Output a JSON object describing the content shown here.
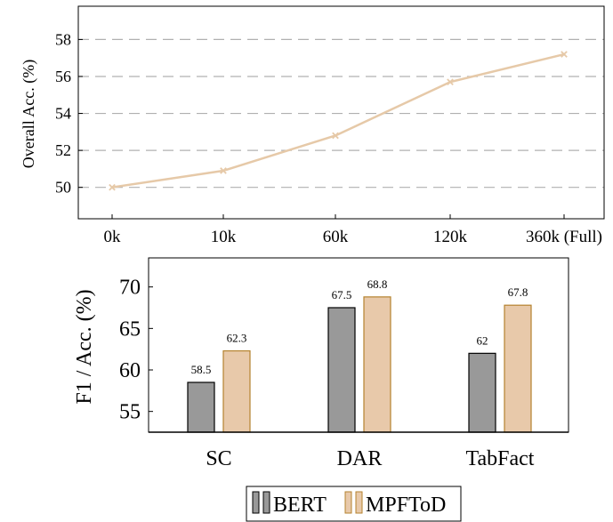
{
  "chart_data": [
    {
      "type": "line",
      "title": "",
      "xlabel": "",
      "ylabel": "Overall Acc. (%)",
      "categories": [
        "0k",
        "10k",
        "60k",
        "120k",
        "360k (Full)"
      ],
      "series": [
        {
          "values": [
            50.0,
            50.9,
            52.8,
            55.7,
            57.2
          ]
        }
      ],
      "yticks": [
        50,
        52,
        54,
        56,
        58
      ],
      "ylim": [
        48.3,
        59.8
      ],
      "grid": "horizontal dashed",
      "line_color": "#e6c9a8",
      "marker": "x"
    },
    {
      "type": "bar",
      "title": "",
      "xlabel": "",
      "ylabel": "F1 / Acc. (%)",
      "categories": [
        "SC",
        "DAR",
        "TabFact"
      ],
      "series": [
        {
          "name": "BERT",
          "values": [
            58.5,
            67.5,
            62
          ],
          "labels": [
            "58.5",
            "67.5",
            "62"
          ],
          "color": "#999999",
          "edge": "#000000"
        },
        {
          "name": "MPFToD",
          "values": [
            62.3,
            68.8,
            67.8
          ],
          "labels": [
            "62.3",
            "68.8",
            "67.8"
          ],
          "color": "#e8c9aa",
          "edge": "#b5832f"
        }
      ],
      "yticks": [
        55,
        60,
        65,
        70
      ],
      "ylim": [
        52.5,
        73.5
      ],
      "legend_position": "bottom"
    }
  ]
}
